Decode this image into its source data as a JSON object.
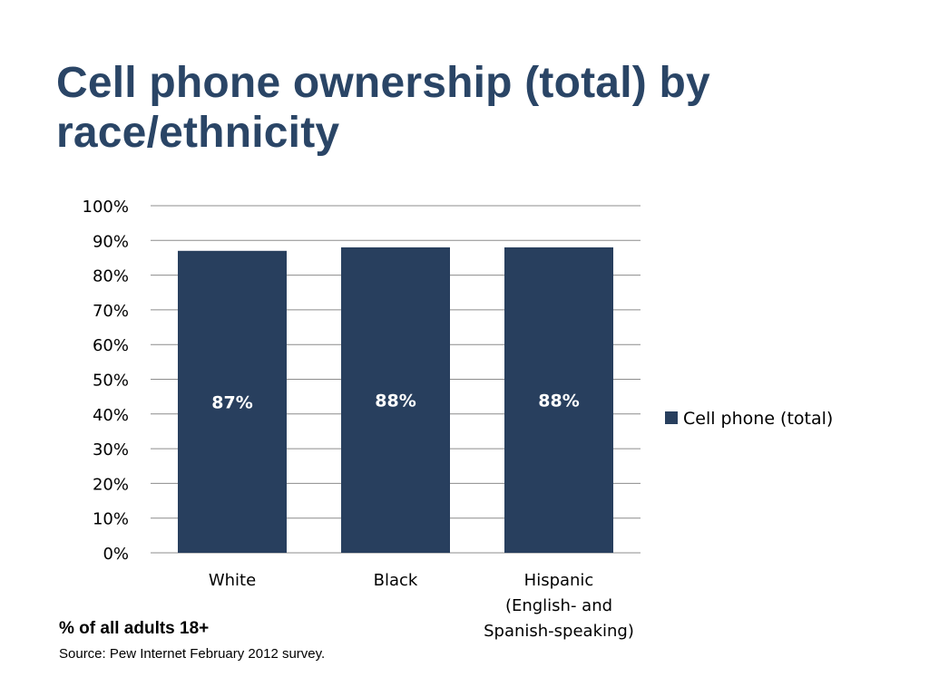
{
  "slide": {
    "title_line1": "Cell phone ownership (total) by",
    "title_line2": "race/ethnicity",
    "note": "% of all adults 18+",
    "source": "Source:  Pew Internet February 2012 survey."
  },
  "colors": {
    "title": "#2a4566",
    "bar": "#283f5e",
    "grid": "#8c8c8c",
    "data_label": "#ffffff",
    "text": "#000000"
  },
  "chart_data": {
    "type": "bar",
    "title": "",
    "xlabel": "",
    "ylabel": "",
    "categories": [
      [
        "White"
      ],
      [
        "Black"
      ],
      [
        "Hispanic",
        "(English- and",
        "Spanish-speaking)"
      ]
    ],
    "series": [
      {
        "name": "Cell phone (total)",
        "values": [
          87,
          88,
          88
        ],
        "data_labels": [
          "87%",
          "88%",
          "88%"
        ]
      }
    ],
    "ylim": [
      0,
      100
    ],
    "y_ticks": [
      0,
      10,
      20,
      30,
      40,
      50,
      60,
      70,
      80,
      90,
      100
    ],
    "y_tick_labels": [
      "0%",
      "10%",
      "20%",
      "30%",
      "40%",
      "50%",
      "60%",
      "70%",
      "80%",
      "90%",
      "100%"
    ],
    "grid": true,
    "legend_position": "right"
  }
}
